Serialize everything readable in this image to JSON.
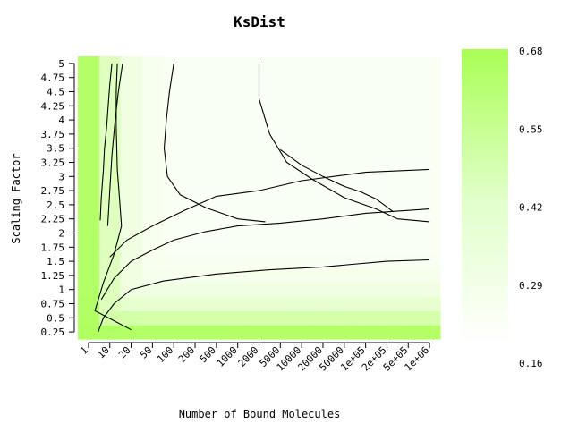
{
  "chart_data": {
    "type": "heatmap",
    "title": "KsDist",
    "xlabel": "Number of Bound Molecules",
    "ylabel": "Scaling Factor",
    "x_categories": [
      "1",
      "10",
      "20",
      "50",
      "100",
      "200",
      "500",
      "1000",
      "2000",
      "5000",
      "10000",
      "20000",
      "50000",
      "1e+05",
      "2e+05",
      "5e+05",
      "1e+06"
    ],
    "y_categories": [
      "0.25",
      "0.5",
      "0.75",
      "1",
      "1.25",
      "1.5",
      "1.75",
      "2",
      "2.25",
      "2.5",
      "2.75",
      "3",
      "3.25",
      "3.5",
      "3.75",
      "4",
      "4.25",
      "4.5",
      "4.75",
      "5"
    ],
    "legend": {
      "ticks": [
        "0.68",
        "0.55",
        "0.42",
        "0.29",
        "0.16"
      ],
      "range": [
        0.16,
        0.68
      ],
      "color_high": "#aaff55",
      "color_low": "#ffffff"
    },
    "contours": [
      [
        [
          0.55,
          7.9
        ],
        [
          0.6,
          9.5
        ],
        [
          0.7,
          11.5
        ],
        [
          0.75,
          13
        ],
        [
          0.85,
          14.5
        ],
        [
          0.95,
          16.5
        ],
        [
          1.0,
          17.5
        ],
        [
          1.1,
          19
        ]
      ],
      [
        [
          1.6,
          19.0
        ],
        [
          1.4,
          17.0
        ],
        [
          1.25,
          15.0
        ],
        [
          1.1,
          12.5
        ],
        [
          1.0,
          10.0
        ],
        [
          0.9,
          7.5
        ]
      ],
      [
        [
          2.0,
          0.15
        ],
        [
          0.3,
          1.5
        ],
        [
          0.7,
          3.5
        ],
        [
          1.2,
          5.5
        ],
        [
          1.55,
          7.5
        ],
        [
          1.45,
          9.5
        ],
        [
          1.35,
          11.5
        ],
        [
          1.3,
          14.5
        ],
        [
          1.3,
          17
        ],
        [
          1.35,
          19
        ]
      ],
      [
        [
          0.45,
          0.0
        ],
        [
          0.7,
          1.0
        ],
        [
          1.2,
          2.0
        ],
        [
          2.0,
          3.0
        ],
        [
          3.5,
          3.6
        ],
        [
          6.0,
          4.1
        ],
        [
          8.5,
          4.4
        ],
        [
          11.0,
          4.6
        ],
        [
          14.0,
          5.0
        ],
        [
          16.0,
          5.1
        ]
      ],
      [
        [
          0.6,
          2.3
        ],
        [
          1.2,
          3.8
        ],
        [
          2.0,
          5.0
        ],
        [
          3.0,
          5.8
        ],
        [
          4.0,
          6.5
        ],
        [
          5.5,
          7.1
        ],
        [
          7.0,
          7.5
        ],
        [
          9.0,
          7.7
        ],
        [
          11.0,
          8.0
        ],
        [
          13.0,
          8.4
        ],
        [
          16.0,
          8.7
        ]
      ],
      [
        [
          1.0,
          5.3
        ],
        [
          1.8,
          6.5
        ],
        [
          3.0,
          7.5
        ],
        [
          4.5,
          8.6
        ],
        [
          6.0,
          9.6
        ],
        [
          8.0,
          10.0
        ],
        [
          10.0,
          10.7
        ],
        [
          13.0,
          11.3
        ],
        [
          16.0,
          11.5
        ]
      ],
      [
        [
          4.0,
          19
        ],
        [
          3.8,
          17
        ],
        [
          3.65,
          15
        ],
        [
          3.55,
          13
        ],
        [
          3.7,
          11
        ],
        [
          4.3,
          9.7
        ],
        [
          5.5,
          8.8
        ],
        [
          7.0,
          8.0
        ],
        [
          8.3,
          7.8
        ]
      ],
      [
        [
          8.0,
          19
        ],
        [
          8.0,
          16.5
        ],
        [
          8.5,
          14.0
        ],
        [
          9.3,
          12.0
        ],
        [
          10.5,
          10.8
        ],
        [
          12.0,
          9.5
        ],
        [
          13.5,
          8.7
        ],
        [
          14.5,
          8.0
        ],
        [
          16.0,
          7.8
        ]
      ],
      [
        [
          9.0,
          12.9
        ],
        [
          10.0,
          11.8
        ],
        [
          11.0,
          11.0
        ],
        [
          12.0,
          10.3
        ],
        [
          12.8,
          9.9
        ],
        [
          13.5,
          9.4
        ],
        [
          14.3,
          8.5
        ]
      ]
    ]
  }
}
